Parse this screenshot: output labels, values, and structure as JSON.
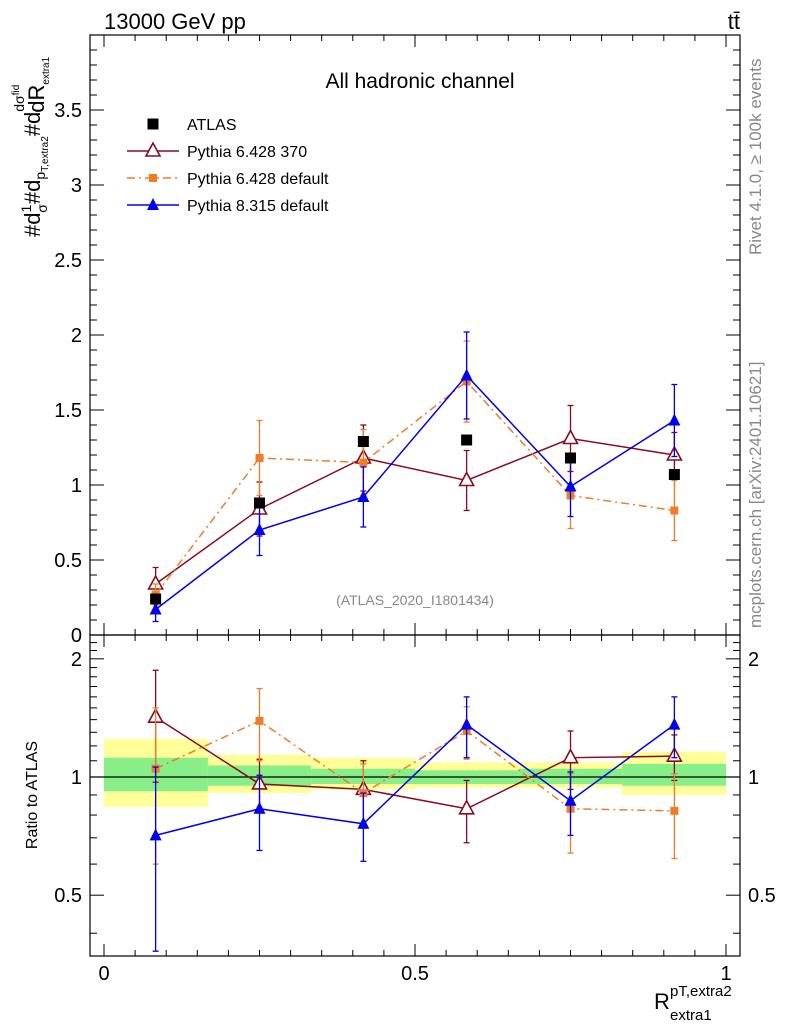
{
  "header": {
    "energy_label": "13000 GeV pp",
    "process_label": "tt̄"
  },
  "side_labels": {
    "rivet": "Rivet 4.1.0, ≥ 100k events",
    "mcplots": "mcplots.cern.ch [arXiv:2401.10621]"
  },
  "chart_data": {
    "type": "line",
    "title": "All hadronic channel",
    "analysis_id": "(ATLAS_2020_I1801434)",
    "ylabel_top": "#d1/σ#dσ^fid/dR_extra1 d p_T,extra2",
    "ylabel_bottom": "Ratio to ATLAS",
    "xlabel": "R_extra1^pT,extra2",
    "xlim": [
      0,
      1
    ],
    "ylim_top": [
      0,
      4
    ],
    "ylim_bottom": [
      0.35,
      2.3
    ],
    "x_ticks": [
      "0",
      "0.5",
      "1"
    ],
    "y_ticks_top": [
      "0",
      "0.5",
      "1",
      "1.5",
      "2",
      "2.5",
      "3",
      "3.5"
    ],
    "y_ticks_bottom": [
      "0.5",
      "1",
      "2"
    ],
    "x_bin_edges": [
      0.0,
      0.167,
      0.333,
      0.5,
      0.667,
      0.833,
      1.0
    ],
    "x_centers": [
      0.083,
      0.25,
      0.417,
      0.583,
      0.75,
      0.917
    ],
    "series": [
      {
        "name": "ATLAS",
        "style": "data",
        "color": "#000000",
        "values": [
          0.24,
          0.88,
          1.29,
          1.3,
          1.18,
          1.07
        ]
      },
      {
        "name": "Pythia 6.428 370",
        "style": "open-triangle",
        "color": "#8b0a1e",
        "values": [
          0.34,
          0.84,
          1.18,
          1.03,
          1.31,
          1.2
        ],
        "errors": [
          0.11,
          0.18,
          0.22,
          0.2,
          0.22,
          0.15
        ],
        "ratio": [
          1.42,
          0.96,
          0.93,
          0.83,
          1.12,
          1.13
        ],
        "ratio_errors": [
          0.45,
          0.15,
          0.17,
          0.15,
          0.19,
          0.15
        ]
      },
      {
        "name": "Pythia 6.428 default",
        "style": "dashdot-square",
        "color": "#f07c2a",
        "values": [
          0.27,
          1.18,
          1.15,
          1.69,
          0.93,
          0.83
        ],
        "errors": [
          0.07,
          0.25,
          0.22,
          0.27,
          0.22,
          0.2
        ],
        "ratio": [
          1.05,
          1.39,
          0.91,
          1.31,
          0.83,
          0.82
        ],
        "ratio_errors": [
          0.45,
          0.29,
          0.17,
          0.2,
          0.19,
          0.2
        ]
      },
      {
        "name": "Pythia 8.315 default",
        "style": "filled-triangle",
        "color": "#0000ee",
        "values": [
          0.17,
          0.7,
          0.92,
          1.73,
          0.99,
          1.43
        ],
        "errors": [
          0.08,
          0.17,
          0.2,
          0.29,
          0.2,
          0.24
        ],
        "ratio": [
          0.71,
          0.83,
          0.76,
          1.36,
          0.87,
          1.36
        ],
        "ratio_errors": [
          0.35,
          0.18,
          0.15,
          0.24,
          0.16,
          0.24
        ]
      }
    ],
    "uncertainty_bands": {
      "inner_color": "#88ee88",
      "outer_color": "#ffff99",
      "inner": [
        [
          0.92,
          1.12
        ],
        [
          0.95,
          1.07
        ],
        [
          0.96,
          1.05
        ],
        [
          0.96,
          1.04
        ],
        [
          0.96,
          1.05
        ],
        [
          0.95,
          1.08
        ]
      ],
      "outer": [
        [
          0.84,
          1.25
        ],
        [
          0.91,
          1.14
        ],
        [
          0.93,
          1.12
        ],
        [
          0.94,
          1.09
        ],
        [
          0.94,
          1.09
        ],
        [
          0.9,
          1.16
        ]
      ]
    }
  }
}
